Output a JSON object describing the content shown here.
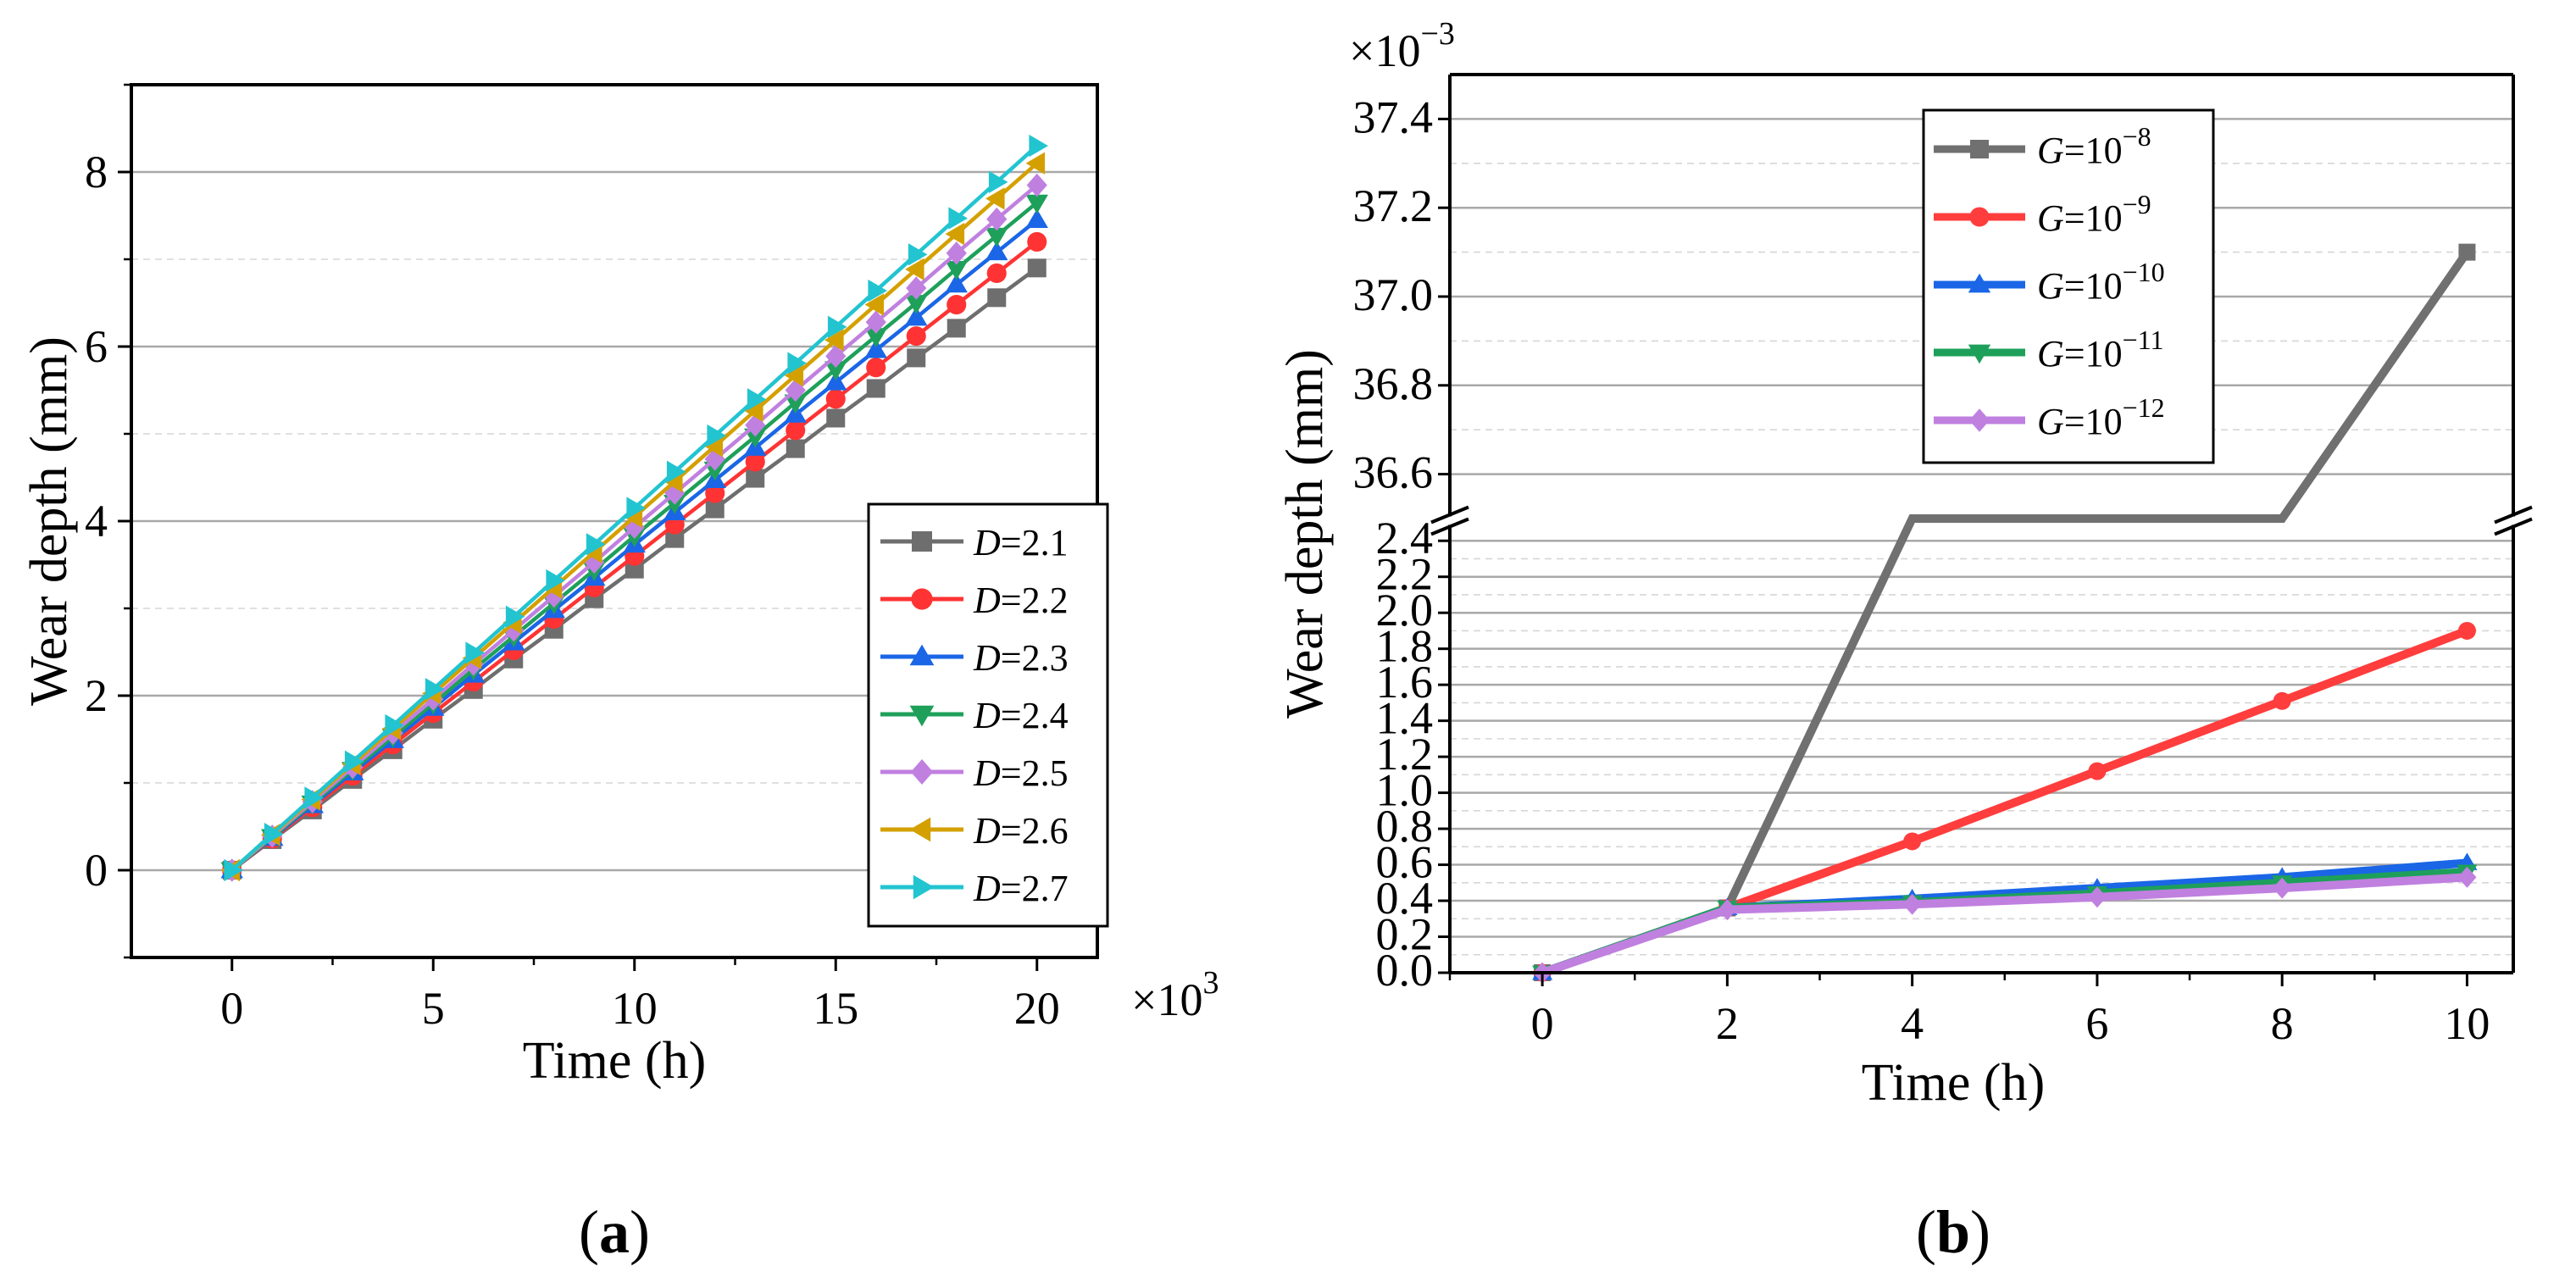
{
  "chart_data": [
    {
      "type": "line",
      "panel_label_pre": "(",
      "panel_label": "a",
      "panel_label_post": ")",
      "xlabel": "Time (h)",
      "ylabel": "Wear depth (mm)",
      "x_multiplier_label": "×10",
      "x_multiplier_exp": "3",
      "xlim": [
        -2.5,
        21.5
      ],
      "ylim": [
        -1,
        9
      ],
      "xticks": [
        0,
        5,
        10,
        15,
        20
      ],
      "yticks": [
        0,
        2,
        4,
        6,
        8
      ],
      "grid": true,
      "legend": "bottom-right",
      "legend_var": "D",
      "x": [
        0,
        1,
        2,
        3,
        4,
        5,
        6,
        7,
        8,
        9,
        10,
        11,
        12,
        13,
        14,
        15,
        16,
        17,
        18,
        19,
        20
      ],
      "series": [
        {
          "name": "=2.1",
          "color": "#6e6e6e",
          "marker": "square",
          "values": [
            0,
            0.35,
            0.69,
            1.04,
            1.38,
            1.73,
            2.07,
            2.42,
            2.76,
            3.11,
            3.45,
            3.8,
            4.14,
            4.49,
            4.83,
            5.18,
            5.52,
            5.87,
            6.21,
            6.56,
            6.9
          ]
        },
        {
          "name": "=2.2",
          "color": "#ff3333",
          "marker": "circle",
          "values": [
            0,
            0.36,
            0.72,
            1.08,
            1.44,
            1.8,
            2.16,
            2.52,
            2.88,
            3.24,
            3.6,
            3.96,
            4.32,
            4.68,
            5.04,
            5.4,
            5.76,
            6.12,
            6.48,
            6.84,
            7.2
          ]
        },
        {
          "name": "=2.3",
          "color": "#1a66e6",
          "marker": "triangle-up",
          "values": [
            0,
            0.37,
            0.745,
            1.12,
            1.49,
            1.86,
            2.24,
            2.61,
            2.98,
            3.35,
            3.73,
            4.1,
            4.47,
            4.84,
            5.22,
            5.59,
            5.96,
            6.33,
            6.71,
            7.08,
            7.45
          ]
        },
        {
          "name": "=2.4",
          "color": "#1ea05a",
          "marker": "triangle-down",
          "values": [
            0,
            0.38,
            0.765,
            1.15,
            1.53,
            1.91,
            2.3,
            2.68,
            3.06,
            3.44,
            3.83,
            4.21,
            4.59,
            4.97,
            5.36,
            5.74,
            6.12,
            6.5,
            6.89,
            7.27,
            7.65
          ]
        },
        {
          "name": "=2.5",
          "color": "#c080e0",
          "marker": "diamond",
          "values": [
            0,
            0.39,
            0.785,
            1.18,
            1.57,
            1.96,
            2.36,
            2.75,
            3.14,
            3.53,
            3.93,
            4.32,
            4.71,
            5.1,
            5.5,
            5.89,
            6.28,
            6.67,
            7.07,
            7.46,
            7.85
          ]
        },
        {
          "name": "=2.6",
          "color": "#d4a000",
          "marker": "triangle-left",
          "values": [
            0,
            0.405,
            0.81,
            1.215,
            1.62,
            2.025,
            2.43,
            2.835,
            3.24,
            3.645,
            4.05,
            4.455,
            4.86,
            5.265,
            5.67,
            6.075,
            6.48,
            6.885,
            7.29,
            7.695,
            8.1
          ]
        },
        {
          "name": "=2.7",
          "color": "#22c4d0",
          "marker": "triangle-right",
          "values": [
            0,
            0.415,
            0.83,
            1.245,
            1.66,
            2.075,
            2.49,
            2.905,
            3.32,
            3.735,
            4.15,
            4.565,
            4.98,
            5.395,
            5.81,
            6.225,
            6.64,
            7.055,
            7.47,
            7.885,
            8.3
          ]
        }
      ]
    },
    {
      "type": "line",
      "panel_label_pre": "(",
      "panel_label": "b",
      "panel_label_post": ")",
      "xlabel": "Time (h)",
      "ylabel": "Wear depth (mm)",
      "y_multiplier_label": "×10",
      "y_multiplier_exp": "−3",
      "xlim": [
        -1,
        10.5
      ],
      "broken_y_axis": true,
      "ylim_lower": [
        0,
        2.5
      ],
      "ylim_upper": [
        36.5,
        37.5
      ],
      "xticks": [
        0,
        2,
        4,
        6,
        8,
        10
      ],
      "yticks_lower": [
        "0.0",
        "0.2",
        "0.4",
        "0.6",
        "0.8",
        "1.0",
        "1.2",
        "1.4",
        "1.6",
        "1.8",
        "2.0",
        "2.2",
        "2.4"
      ],
      "yticks_upper": [
        "36.6",
        "36.8",
        "37.0",
        "37.2",
        "37.4"
      ],
      "grid": true,
      "legend": "top-left",
      "legend_var": "G",
      "legend_base": "=10",
      "x": [
        0,
        2,
        4,
        6,
        8,
        10
      ],
      "series": [
        {
          "name_exp": "−8",
          "color": "#707070",
          "marker": "square",
          "values": [
            0,
            0.36,
            36.5,
            36.5,
            36.5,
            37.1
          ]
        },
        {
          "name_exp": "−9",
          "color": "#ff3d3d",
          "marker": "circle",
          "values": [
            0,
            0.36,
            0.73,
            1.12,
            1.51,
            1.9
          ]
        },
        {
          "name_exp": "−10",
          "color": "#1a66e6",
          "marker": "triangle-up",
          "values": [
            0,
            0.36,
            0.41,
            0.47,
            0.53,
            0.61
          ]
        },
        {
          "name_exp": "−11",
          "color": "#1ea05a",
          "marker": "triangle-down",
          "values": [
            0,
            0.36,
            0.39,
            0.44,
            0.5,
            0.56
          ]
        },
        {
          "name_exp": "−12",
          "color": "#c080e0",
          "marker": "diamond",
          "values": [
            0,
            0.35,
            0.38,
            0.42,
            0.47,
            0.53
          ]
        }
      ]
    }
  ]
}
